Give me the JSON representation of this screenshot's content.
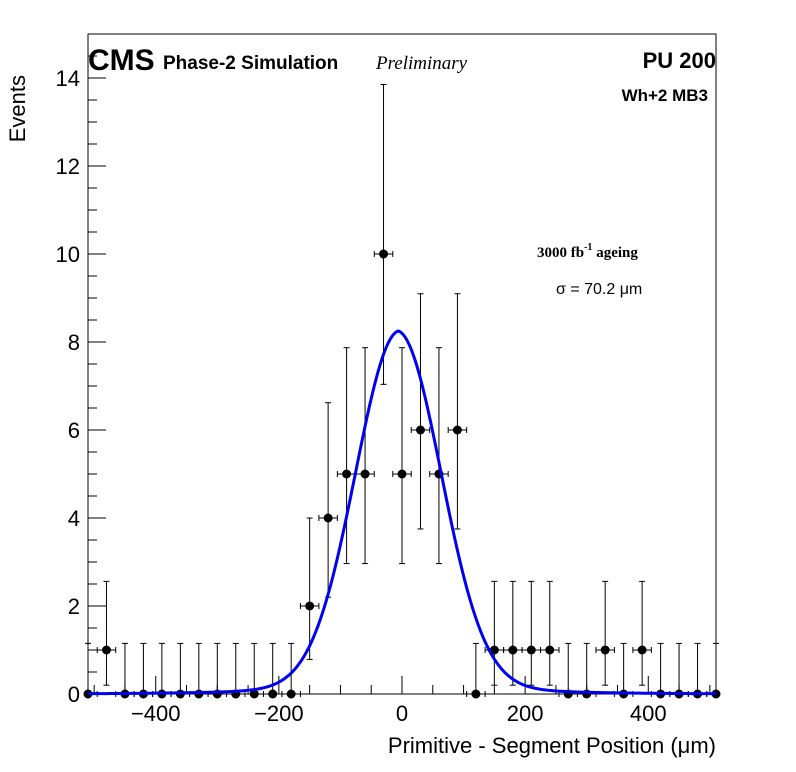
{
  "chart_data": {
    "type": "scatter",
    "experiment": "CMS",
    "subtitle": "Phase-2 Simulation",
    "status": "Preliminary",
    "pileup": "PU 200",
    "chamber": "Wh+2 MB3",
    "ageing_label": {
      "prefix": "3000 fb",
      "sup": "-1",
      "suffix": " ageing"
    },
    "fit_label": "σ = 70.2 μm",
    "xlabel": "Primitive - Segment Position (μm)",
    "ylabel": "Events",
    "xlim": [
      -510,
      510
    ],
    "ylim": [
      0,
      15
    ],
    "x_ticks": [
      -400,
      -200,
      0,
      200,
      400
    ],
    "x_tick_labels": [
      "−400",
      "−200",
      "0",
      "200",
      "400"
    ],
    "y_ticks": [
      0,
      2,
      4,
      6,
      8,
      10,
      12,
      14
    ],
    "y_tick_labels": [
      "0",
      "2",
      "4",
      "6",
      "8",
      "10",
      "12",
      "14"
    ],
    "bin_width": 30,
    "series": [
      {
        "name": "Simulation",
        "x": [
          -510,
          -480,
          -450,
          -420,
          -390,
          -360,
          -330,
          -300,
          -270,
          -240,
          -210,
          -180,
          -150,
          -120,
          -90,
          -60,
          -30,
          0,
          30,
          60,
          90,
          120,
          150,
          180,
          210,
          240,
          270,
          300,
          330,
          360,
          390,
          420,
          450,
          480,
          510
        ],
        "y": [
          0,
          1,
          0,
          0,
          0,
          0,
          0,
          0,
          0,
          0,
          0,
          0,
          2,
          4,
          5,
          5,
          10,
          5,
          6,
          5,
          6,
          0,
          1,
          1,
          1,
          1,
          0,
          0,
          1,
          0,
          1,
          0,
          0,
          0,
          0
        ]
      }
    ],
    "fit": {
      "name": "Gaussian fit",
      "color": "#0000ee",
      "mean": -6,
      "sigma": 70.2,
      "amplitude": 7.75
    }
  }
}
